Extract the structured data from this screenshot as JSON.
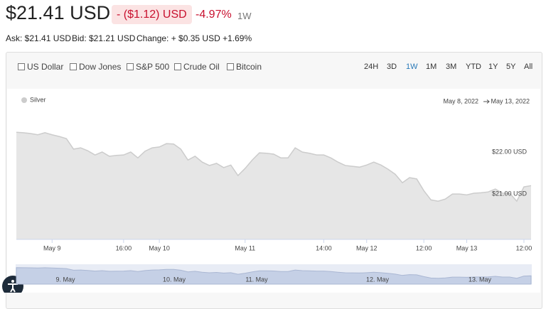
{
  "header": {
    "price": "$21.41 USD",
    "change": "- ($1.12) USD",
    "change_pct": "-4.97%",
    "period": "1W",
    "ask": "Ask: $21.41 USD",
    "bid": "Bid: $21.21 USD",
    "change_line": "Change: + $0.35 USD +1.69%"
  },
  "compare": [
    "US Dollar",
    "Dow Jones",
    "S&P 500",
    "Crude Oil",
    "Bitcoin"
  ],
  "ranges": [
    "24H",
    "3D",
    "1W",
    "1M",
    "3M",
    "YTD",
    "1Y",
    "5Y",
    "All"
  ],
  "chart_data": {
    "type": "area",
    "date_range": [
      "May 8, 2022",
      "May 13, 2022"
    ],
    "categories": [
      null,
      null,
      null,
      null,
      null,
      "May 9",
      null,
      null,
      null,
      null,
      null,
      null,
      null,
      null,
      null,
      "16:00",
      null,
      null,
      null,
      null,
      "May 10",
      null,
      null,
      null,
      null,
      null,
      null,
      null,
      null,
      null,
      null,
      null,
      "May 11",
      null,
      null,
      null,
      null,
      null,
      null,
      null,
      null,
      null,
      null,
      "14:00",
      null,
      null,
      null,
      null,
      null,
      "May 12",
      null,
      null,
      null,
      null,
      null,
      null,
      null,
      "12:00",
      null,
      null,
      null,
      null,
      null,
      "May 13",
      null,
      null,
      null,
      null,
      null,
      null,
      null,
      "12:00",
      null
    ],
    "series": [
      {
        "name": "Silver",
        "color": "#cccccc",
        "values": [
          22.47,
          22.46,
          22.44,
          22.41,
          22.46,
          22.41,
          22.37,
          22.32,
          22.07,
          22.1,
          22.03,
          21.93,
          22.0,
          21.9,
          21.92,
          21.93,
          22.0,
          21.86,
          22.02,
          22.1,
          22.12,
          22.2,
          22.19,
          22.07,
          21.81,
          21.9,
          21.76,
          21.68,
          21.73,
          21.63,
          21.69,
          21.44,
          21.61,
          21.81,
          21.98,
          21.97,
          21.95,
          21.86,
          21.86,
          22.1,
          22.0,
          21.97,
          21.93,
          21.93,
          21.86,
          21.76,
          21.68,
          21.66,
          21.64,
          21.69,
          21.76,
          21.69,
          21.59,
          21.47,
          21.27,
          21.39,
          21.36,
          21.08,
          20.86,
          20.83,
          20.88,
          21.0,
          21.0,
          20.98,
          21.02,
          21.03,
          21.05,
          21.12,
          21.02,
          21.02,
          20.83,
          21.17,
          21.2
        ]
      }
    ],
    "ylim": [
      19.92,
      22.66
    ],
    "yticks": [
      {
        "value": 22,
        "label": "$22.00 USD"
      },
      {
        "value": 21,
        "label": "$21.00 USD"
      }
    ],
    "navigator_labels": [
      "9. May",
      "10. May",
      "11. May",
      "12. May",
      "13. May"
    ]
  }
}
